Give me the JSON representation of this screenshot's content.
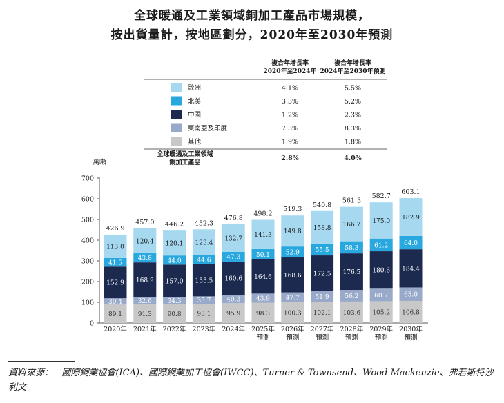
{
  "title_line1": "全球暖通及工業領域銅加工產品市場規模，",
  "title_line2": "按出貨量計，按地區劃分，2020年至2030年預測",
  "source_label": "資料來源：",
  "source_text": "國際銅業協會(ICA)、國際銅業加工協會(IWCC)、Turner & Townsend、Wood Mackenzie、弗若斯特沙利文",
  "colors": {
    "europe": "#A6D9F0",
    "north_america": "#29A8E0",
    "china": "#1B2A4E",
    "sea_india": "#98A9C9",
    "other": "#C8C8C8",
    "axis": "#555555"
  },
  "chart_data": {
    "type": "bar",
    "stacked": true,
    "ylabel": "萬噸",
    "ylim": [
      0,
      700
    ],
    "yticks": [
      0,
      100,
      200,
      300,
      400,
      500,
      600,
      700
    ],
    "categories": [
      "2020年",
      "2021年",
      "2022年",
      "2023年",
      "2024年",
      "2025年\n預測",
      "2026年\n預測",
      "2027年\n預測",
      "2028年\n預測",
      "2029年\n預測",
      "2030年\n預測"
    ],
    "series": [
      {
        "key": "other",
        "name": "其他",
        "values": [
          89.1,
          91.3,
          90.8,
          93.1,
          95.9,
          98.3,
          100.3,
          102.1,
          103.6,
          105.2,
          106.8
        ]
      },
      {
        "key": "sea_india",
        "name": "東南亞及印度",
        "values": [
          30.4,
          32.6,
          34.3,
          35.7,
          40.3,
          43.9,
          47.7,
          51.9,
          56.2,
          60.7,
          65.0
        ]
      },
      {
        "key": "china",
        "name": "中國",
        "values": [
          152.9,
          168.9,
          157.0,
          155.5,
          160.6,
          164.6,
          168.6,
          172.5,
          176.5,
          180.6,
          184.4
        ]
      },
      {
        "key": "north_america",
        "name": "北美",
        "values": [
          41.5,
          43.8,
          44.0,
          44.6,
          47.3,
          50.1,
          52.9,
          55.5,
          58.3,
          61.2,
          64.0
        ]
      },
      {
        "key": "europe",
        "name": "歐洲",
        "values": [
          113.0,
          120.4,
          120.1,
          123.4,
          132.7,
          141.3,
          149.8,
          158.8,
          166.7,
          175.0,
          182.9
        ]
      }
    ],
    "totals": [
      426.9,
      457.0,
      446.2,
      452.3,
      476.8,
      498.2,
      519.3,
      540.8,
      561.3,
      582.7,
      603.1
    ],
    "legend_order": [
      "europe",
      "north_america",
      "china",
      "sea_india",
      "other"
    ],
    "cagr_headers": [
      "複合年增長率\n2020年至2024年",
      "複合年增長率\n2024年至2030年預測"
    ],
    "cagr": {
      "europe": [
        "4.1%",
        "5.5%"
      ],
      "north_america": [
        "3.3%",
        "5.2%"
      ],
      "china": [
        "1.2%",
        "2.3%"
      ],
      "sea_india": [
        "7.3%",
        "8.3%"
      ],
      "other": [
        "1.9%",
        "1.8%"
      ]
    },
    "global_label": "全球暖通及工業領域\n銅加工產品",
    "global_cagr": [
      "2.8%",
      "4.0%"
    ]
  }
}
